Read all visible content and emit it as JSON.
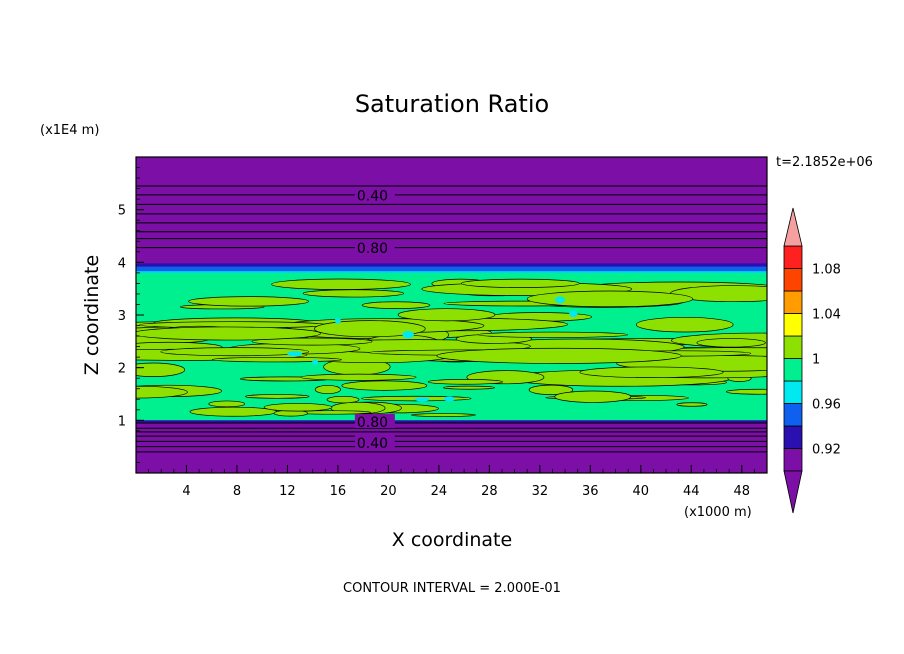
{
  "chart_data": {
    "type": "heatmap",
    "title": "Saturation Ratio",
    "xlabel": "X coordinate",
    "ylabel": "Z coordinate",
    "x_unit": "(x1000 m)",
    "y_unit": "(x1E4 m)",
    "time_label": "t=2.1852e+06",
    "footer": "CONTOUR INTERVAL = 2.000E-01",
    "xlim": [
      0,
      50
    ],
    "ylim": [
      0,
      6
    ],
    "x_ticks": [
      "4",
      "8",
      "12",
      "16",
      "20",
      "24",
      "28",
      "32",
      "36",
      "40",
      "44",
      "48"
    ],
    "y_ticks": [
      "1",
      "2",
      "3",
      "4",
      "5"
    ],
    "contour_labels": [
      {
        "text": "0.40",
        "x": 17.5,
        "z": 5.25
      },
      {
        "text": "0.80",
        "x": 17.5,
        "z": 4.25
      },
      {
        "text": "0.80",
        "x": 17.5,
        "z": 0.95
      },
      {
        "text": "0.40",
        "x": 17.5,
        "z": 0.55
      }
    ],
    "colorbar": {
      "colors": [
        "#7b0fa6",
        "#2a10b0",
        "#1060f0",
        "#00e8f0",
        "#00f090",
        "#8ee000",
        "#ffff00",
        "#ff9c00",
        "#ff4400",
        "#ff2020",
        "#f4a0a0"
      ],
      "labels": [
        "0.92",
        "0.96",
        "1",
        "1.04",
        "1.08"
      ]
    },
    "colors": {
      "purple": "#7b0fa6",
      "navy": "#2a10b0",
      "blue": "#1060f0",
      "cyan": "#00e8f0",
      "green": "#00f090",
      "lime": "#8ee000"
    }
  }
}
